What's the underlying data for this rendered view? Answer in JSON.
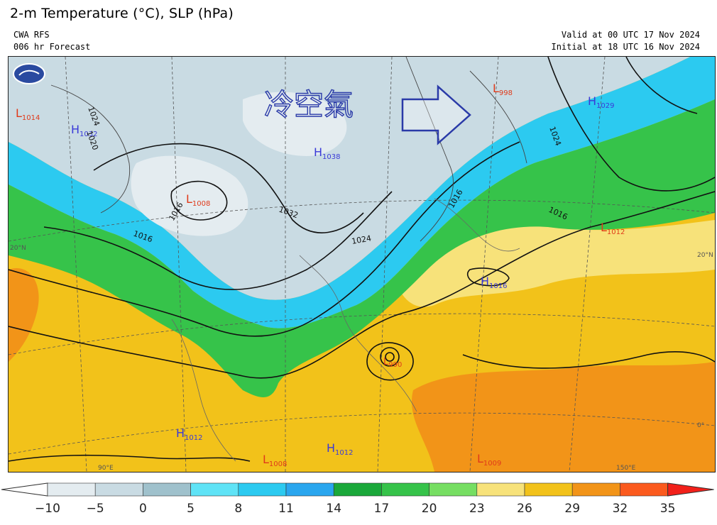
{
  "header": {
    "title": "2-m Temperature (°C), SLP (hPa)",
    "model": "CWA RFS",
    "forecast": "006 hr Forecast",
    "valid": "Valid at 00 UTC 17 Nov 2024",
    "initial": "Initial at 18 UTC 16 Nov 2024"
  },
  "annotation": {
    "text": "冷空氣",
    "color": "#2a3aa8"
  },
  "pressure_centers": [
    {
      "type": "L",
      "letter": "L",
      "value": "1014"
    },
    {
      "type": "H",
      "letter": "H",
      "value": "1032"
    },
    {
      "type": "L",
      "letter": "L",
      "value": "1008"
    },
    {
      "type": "H",
      "letter": "H",
      "value": "1038"
    },
    {
      "type": "L",
      "letter": "L",
      "value": "998"
    },
    {
      "type": "H",
      "letter": "H",
      "value": "1029"
    },
    {
      "type": "L",
      "letter": "L",
      "value": "1012"
    },
    {
      "type": "H",
      "letter": "H",
      "value": "1016"
    },
    {
      "type": "L",
      "letter": "L",
      "value": "990"
    },
    {
      "type": "H",
      "letter": "H",
      "value": "1012"
    },
    {
      "type": "H",
      "letter": "H",
      "value": "1012"
    },
    {
      "type": "L",
      "letter": "L",
      "value": "1008"
    },
    {
      "type": "L",
      "letter": "L",
      "value": "1009"
    }
  ],
  "isobar_labels": [
    "1024",
    "1020",
    "1016",
    "1016",
    "1032",
    "1024",
    "1016",
    "1016",
    "1024"
  ],
  "graticule_labels": [
    "20°N",
    "20°N",
    "0°",
    "90°E",
    "150°E"
  ],
  "legend": {
    "ticks": [
      "−10",
      "−5",
      "0",
      "5",
      "8",
      "11",
      "14",
      "17",
      "20",
      "23",
      "26",
      "29",
      "32",
      "35"
    ],
    "colors": [
      "#e4ecf0",
      "#c9dbe3",
      "#9fc1cc",
      "#5fe3f6",
      "#2ccaf0",
      "#2aa6ee",
      "#1aa83a",
      "#36c34a",
      "#76de62",
      "#f7e27a",
      "#f2c21a",
      "#f29418",
      "#fb5a1e"
    ]
  },
  "colors": {
    "cold": "#c9dbe3",
    "cool": "#2ccaf0",
    "mild": "#36c34a",
    "warm": "#f2c21a",
    "hot": "#f29418"
  }
}
